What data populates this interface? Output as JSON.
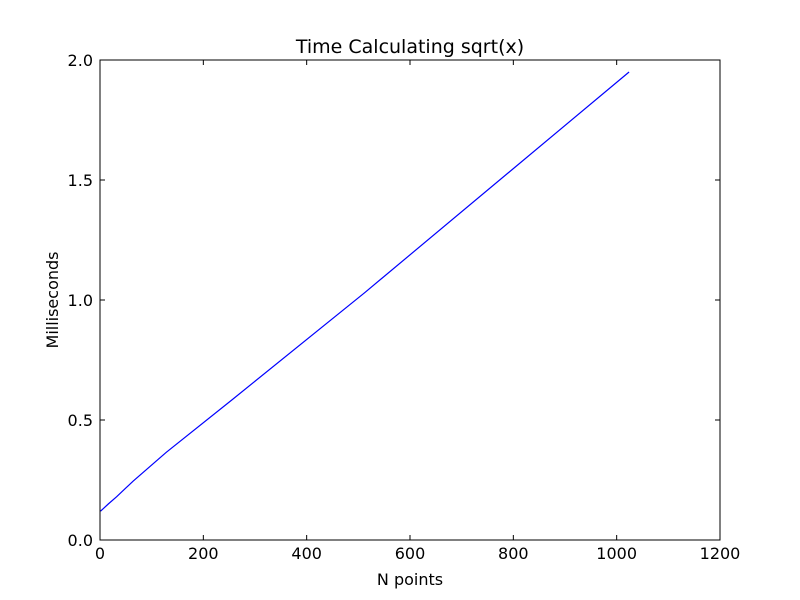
{
  "chart_data": {
    "type": "line",
    "title": "Time Calculating sqrt(x)",
    "xlabel": "N points",
    "ylabel": "Milliseconds",
    "xlim": [
      0,
      1200
    ],
    "ylim": [
      0.0,
      2.0
    ],
    "xticks": [
      "0",
      "200",
      "400",
      "600",
      "800",
      "1000",
      "1200"
    ],
    "yticks": [
      "0.0",
      "0.5",
      "1.0",
      "1.5",
      "2.0"
    ],
    "xtick_values": [
      0,
      200,
      400,
      600,
      800,
      1000,
      1200
    ],
    "ytick_values": [
      0.0,
      0.5,
      1.0,
      1.5,
      2.0
    ],
    "grid": false,
    "series": [
      {
        "color": "#0000ff",
        "x": [
          1,
          16,
          32,
          64,
          128,
          256,
          512,
          1024
        ],
        "y": [
          0.12,
          0.15,
          0.18,
          0.245,
          0.365,
          0.585,
          1.03,
          1.95
        ]
      }
    ]
  }
}
